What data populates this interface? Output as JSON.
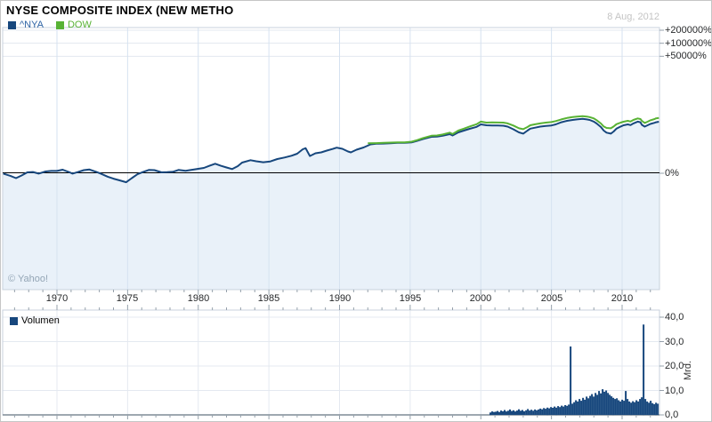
{
  "header": {
    "title": "NYSE COMPOSITE INDEX (NEW METHO",
    "date": "8 Aug, 2012"
  },
  "legend": {
    "items": [
      {
        "label": "^NYA",
        "swatch_color": "#17477d",
        "text_color": "#2e63a4"
      },
      {
        "label": "DOW",
        "swatch_color": "#58b234",
        "text_color": "#58b234"
      }
    ]
  },
  "watermark": "© Yahoo!",
  "volume_legend": {
    "label": "Volumen",
    "swatch_color": "#17477d"
  },
  "colors": {
    "nya_line": "#17477d",
    "dow_line": "#58b234",
    "area_fill": "#e9f1f9",
    "grid_h": "#e3e8ef",
    "grid_v": "#d6e2f0",
    "frame": "#c8d2dd",
    "zero_line": "#000000",
    "tick": "#95a0ab",
    "vol_bar": "#17477d",
    "vol_baseline": "#7e8b96"
  },
  "chart_data": [
    {
      "type": "line",
      "name": "price-percent-chart",
      "y_axis": {
        "scale": "log-percent",
        "ticks": [
          {
            "pct": 200000,
            "label": "+200000%"
          },
          {
            "pct": 100000,
            "label": "+100000%"
          },
          {
            "pct": 50000,
            "label": "+50000%"
          },
          {
            "pct": 0,
            "label": "0%"
          }
        ],
        "zero_line": true
      },
      "x_axis": {
        "range_years": [
          1966.1,
          2012.6
        ],
        "labeled_years": [
          1970,
          1975,
          1980,
          1985,
          1990,
          1995,
          2000,
          2005,
          2010
        ],
        "minor_tick_step": 1
      },
      "series": [
        {
          "name": "^NYA",
          "color": "#17477d",
          "area_fill": "#e9f1f9",
          "points": [
            [
              1966.2,
              -2
            ],
            [
              1966.7,
              -13
            ],
            [
              1967.1,
              -23
            ],
            [
              1967.5,
              -11
            ],
            [
              1967.9,
              5
            ],
            [
              1968.3,
              7
            ],
            [
              1968.7,
              -2
            ],
            [
              1969.2,
              10
            ],
            [
              1969.6,
              13
            ],
            [
              1970.0,
              13
            ],
            [
              1970.4,
              21
            ],
            [
              1970.9,
              5
            ],
            [
              1971.1,
              -2
            ],
            [
              1971.5,
              7
            ],
            [
              1971.9,
              18
            ],
            [
              1972.3,
              22
            ],
            [
              1972.8,
              7
            ],
            [
              1973.1,
              -2
            ],
            [
              1973.6,
              -17
            ],
            [
              1974.0,
              -25
            ],
            [
              1974.4,
              -31
            ],
            [
              1974.9,
              -38
            ],
            [
              1975.3,
              -23
            ],
            [
              1975.7,
              -5
            ],
            [
              1976.1,
              7
            ],
            [
              1976.5,
              19
            ],
            [
              1976.9,
              18
            ],
            [
              1977.4,
              5
            ],
            [
              1977.8,
              6
            ],
            [
              1978.2,
              8
            ],
            [
              1978.6,
              19
            ],
            [
              1979.1,
              14
            ],
            [
              1979.4,
              18
            ],
            [
              1979.9,
              25
            ],
            [
              1980.4,
              33
            ],
            [
              1980.8,
              49
            ],
            [
              1981.2,
              66
            ],
            [
              1981.6,
              49
            ],
            [
              1982.0,
              36
            ],
            [
              1982.4,
              25
            ],
            [
              1982.8,
              46
            ],
            [
              1983.1,
              76
            ],
            [
              1983.7,
              100
            ],
            [
              1984.1,
              89
            ],
            [
              1984.6,
              80
            ],
            [
              1985.1,
              87
            ],
            [
              1985.6,
              113
            ],
            [
              1986.1,
              131
            ],
            [
              1986.6,
              153
            ],
            [
              1987.0,
              182
            ],
            [
              1987.4,
              258
            ],
            [
              1987.6,
              279
            ],
            [
              1987.9,
              150
            ],
            [
              1988.3,
              189
            ],
            [
              1988.7,
              203
            ],
            [
              1989.1,
              233
            ],
            [
              1989.5,
              263
            ],
            [
              1989.8,
              290
            ],
            [
              1990.2,
              266
            ],
            [
              1990.6,
              218
            ],
            [
              1990.8,
              203
            ],
            [
              1991.2,
              250
            ],
            [
              1991.7,
              293
            ],
            [
              1992.2,
              364
            ],
            [
              1992.6,
              380
            ],
            [
              1993.1,
              385
            ],
            [
              1993.6,
              392
            ],
            [
              1994.1,
              402
            ],
            [
              1994.6,
              404
            ],
            [
              1995.1,
              414
            ],
            [
              1995.5,
              460
            ],
            [
              1995.9,
              515
            ],
            [
              1996.5,
              592
            ],
            [
              1996.9,
              598
            ],
            [
              1997.3,
              633
            ],
            [
              1997.8,
              697
            ],
            [
              1998.0,
              643
            ],
            [
              1998.4,
              776
            ],
            [
              1998.8,
              863
            ],
            [
              1999.2,
              958
            ],
            [
              1999.7,
              1074
            ],
            [
              2000.0,
              1240
            ],
            [
              2000.4,
              1178
            ],
            [
              2000.8,
              1167
            ],
            [
              2001.2,
              1167
            ],
            [
              2001.6,
              1150
            ],
            [
              2001.9,
              1090
            ],
            [
              2002.3,
              933
            ],
            [
              2002.7,
              776
            ],
            [
              2003.0,
              723
            ],
            [
              2003.3,
              863
            ],
            [
              2003.5,
              968
            ],
            [
              2003.8,
              1019
            ],
            [
              2004.2,
              1090
            ],
            [
              2004.6,
              1135
            ],
            [
              2005.0,
              1167
            ],
            [
              2005.3,
              1240
            ],
            [
              2005.7,
              1405
            ],
            [
              2006.1,
              1518
            ],
            [
              2006.5,
              1596
            ],
            [
              2006.8,
              1652
            ],
            [
              2007.2,
              1695
            ],
            [
              2007.5,
              1652
            ],
            [
              2007.7,
              1596
            ],
            [
              2008.0,
              1457
            ],
            [
              2008.2,
              1304
            ],
            [
              2008.5,
              1063
            ],
            [
              2008.7,
              863
            ],
            [
              2008.9,
              764
            ],
            [
              2009.2,
              723
            ],
            [
              2009.4,
              818
            ],
            [
              2009.6,
              968
            ],
            [
              2009.9,
              1101
            ],
            [
              2010.1,
              1178
            ],
            [
              2010.4,
              1240
            ],
            [
              2010.6,
              1194
            ],
            [
              2010.8,
              1316
            ],
            [
              2011.1,
              1457
            ],
            [
              2011.3,
              1405
            ],
            [
              2011.4,
              1209
            ],
            [
              2011.6,
              1090
            ],
            [
              2011.8,
              1178
            ],
            [
              2012.0,
              1277
            ],
            [
              2012.3,
              1360
            ],
            [
              2012.4,
              1405
            ],
            [
              2012.6,
              1443
            ]
          ]
        },
        {
          "name": "DOW",
          "color": "#58b234",
          "points": [
            [
              1992.0,
              390
            ],
            [
              1992.6,
              395
            ],
            [
              1993.1,
              402
            ],
            [
              1993.6,
              410
            ],
            [
              1994.1,
              418
            ],
            [
              1994.6,
              418
            ],
            [
              1995.1,
              434
            ],
            [
              1995.5,
              481
            ],
            [
              1995.9,
              545
            ],
            [
              1996.5,
              633
            ],
            [
              1996.9,
              643
            ],
            [
              1997.3,
              684
            ],
            [
              1997.8,
              764
            ],
            [
              1998.0,
              702
            ],
            [
              1998.4,
              863
            ],
            [
              1998.8,
              968
            ],
            [
              1999.2,
              1101
            ],
            [
              1999.7,
              1253
            ],
            [
              2000.0,
              1457
            ],
            [
              2000.4,
              1372
            ],
            [
              2000.8,
              1398
            ],
            [
              2001.2,
              1385
            ],
            [
              2001.6,
              1378
            ],
            [
              2001.9,
              1316
            ],
            [
              2002.3,
              1161
            ],
            [
              2002.7,
              989
            ],
            [
              2003.0,
              938
            ],
            [
              2003.3,
              1063
            ],
            [
              2003.5,
              1178
            ],
            [
              2003.8,
              1240
            ],
            [
              2004.2,
              1316
            ],
            [
              2004.6,
              1372
            ],
            [
              2005.0,
              1419
            ],
            [
              2005.3,
              1495
            ],
            [
              2005.7,
              1652
            ],
            [
              2006.1,
              1782
            ],
            [
              2006.5,
              1872
            ],
            [
              2006.8,
              1929
            ],
            [
              2007.2,
              1970
            ],
            [
              2007.5,
              1929
            ],
            [
              2007.7,
              1872
            ],
            [
              2008.0,
              1745
            ],
            [
              2008.2,
              1573
            ],
            [
              2008.5,
              1304
            ],
            [
              2008.7,
              1101
            ],
            [
              2008.9,
              1009
            ],
            [
              2009.2,
              989
            ],
            [
              2009.4,
              1101
            ],
            [
              2009.6,
              1253
            ],
            [
              2009.9,
              1372
            ],
            [
              2010.1,
              1443
            ],
            [
              2010.4,
              1518
            ],
            [
              2010.6,
              1464
            ],
            [
              2010.8,
              1596
            ],
            [
              2011.1,
              1745
            ],
            [
              2011.3,
              1678
            ],
            [
              2011.4,
              1518
            ],
            [
              2011.6,
              1350
            ],
            [
              2011.8,
              1443
            ],
            [
              2012.0,
              1565
            ],
            [
              2012.3,
              1678
            ],
            [
              2012.4,
              1754
            ],
            [
              2012.6,
              1791
            ]
          ]
        }
      ]
    },
    {
      "type": "bar",
      "name": "volume-chart",
      "unit": "Mrd.",
      "bar_color": "#17477d",
      "y_axis": {
        "max": 40,
        "ticks": [
          {
            "v": 0,
            "label": "0,0"
          },
          {
            "v": 10,
            "label": "10,0"
          },
          {
            "v": 20,
            "label": "20,0"
          },
          {
            "v": 30,
            "label": "30,0"
          },
          {
            "v": 40,
            "label": "40,0"
          }
        ]
      },
      "bars": {
        "start_year": 2000.68,
        "step_years": 0.126,
        "values": [
          1.0,
          1.4,
          1.2,
          1.3,
          1.6,
          1.2,
          1.8,
          1.5,
          2.0,
          1.4,
          1.7,
          2.2,
          1.6,
          1.9,
          1.4,
          1.8,
          2.3,
          1.7,
          2.0,
          1.5,
          1.9,
          2.4,
          1.8,
          2.1,
          1.7,
          2.2,
          1.9,
          2.2,
          2.6,
          2.3,
          2.8,
          2.5,
          3.0,
          2.7,
          3.2,
          2.9,
          3.4,
          3.0,
          3.6,
          3.2,
          3.8,
          3.4,
          4.0,
          3.7,
          4.2,
          28.0,
          4.6,
          5.2,
          6.0,
          5.5,
          6.5,
          5.8,
          7.0,
          6.2,
          7.5,
          6.8,
          7.8,
          8.5,
          7.5,
          9.0,
          8.2,
          9.8,
          8.8,
          10.5,
          9.5,
          10.0,
          9.0,
          8.2,
          7.6,
          7.0,
          6.5,
          6.8,
          6.0,
          5.5,
          6.2,
          5.8,
          9.8,
          6.5,
          5.5,
          5.0,
          5.6,
          5.2,
          6.0,
          5.5,
          6.5,
          7.2,
          37.0,
          6.5,
          5.5,
          5.0,
          5.8,
          4.8,
          4.4,
          5.0,
          4.6
        ]
      }
    }
  ]
}
